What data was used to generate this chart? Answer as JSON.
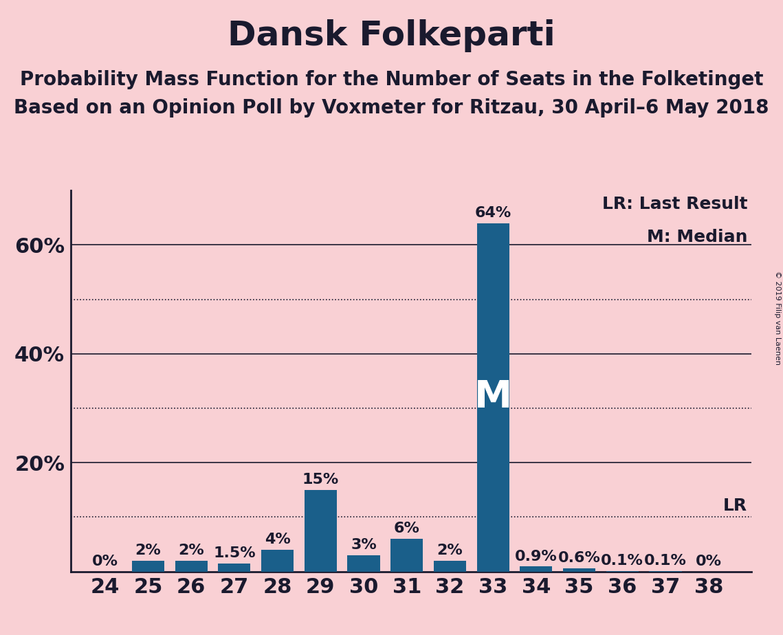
{
  "title": "Dansk Folkeparti",
  "subtitle1": "Probability Mass Function for the Number of Seats in the Folketinget",
  "subtitle2": "Based on an Opinion Poll by Voxmeter for Ritzau, 30 April–6 May 2018",
  "copyright": "© 2019 Filip van Laenen",
  "seats": [
    24,
    25,
    26,
    27,
    28,
    29,
    30,
    31,
    32,
    33,
    34,
    35,
    36,
    37,
    38
  ],
  "probabilities": [
    0.0,
    2.0,
    2.0,
    1.5,
    4.0,
    15.0,
    3.0,
    6.0,
    2.0,
    64.0,
    0.9,
    0.6,
    0.1,
    0.1,
    0.0
  ],
  "bar_color": "#1a5f8a",
  "background_color": "#f9d0d4",
  "bar_labels": [
    "0%",
    "2%",
    "2%",
    "1.5%",
    "4%",
    "15%",
    "3%",
    "6%",
    "2%",
    "64%",
    "0.9%",
    "0.6%",
    "0.1%",
    "0.1%",
    "0%"
  ],
  "median_seat": 33,
  "lr_value": 10.0,
  "ylim": [
    0,
    70
  ],
  "dotted_lines": [
    10,
    30,
    50
  ],
  "solid_lines": [
    20,
    40,
    60
  ],
  "legend_text1": "LR: Last Result",
  "legend_text2": "M: Median",
  "title_fontsize": 36,
  "subtitle_fontsize": 20,
  "bar_label_fontsize": 16,
  "tick_fontsize": 22,
  "annotation_fontsize": 18
}
